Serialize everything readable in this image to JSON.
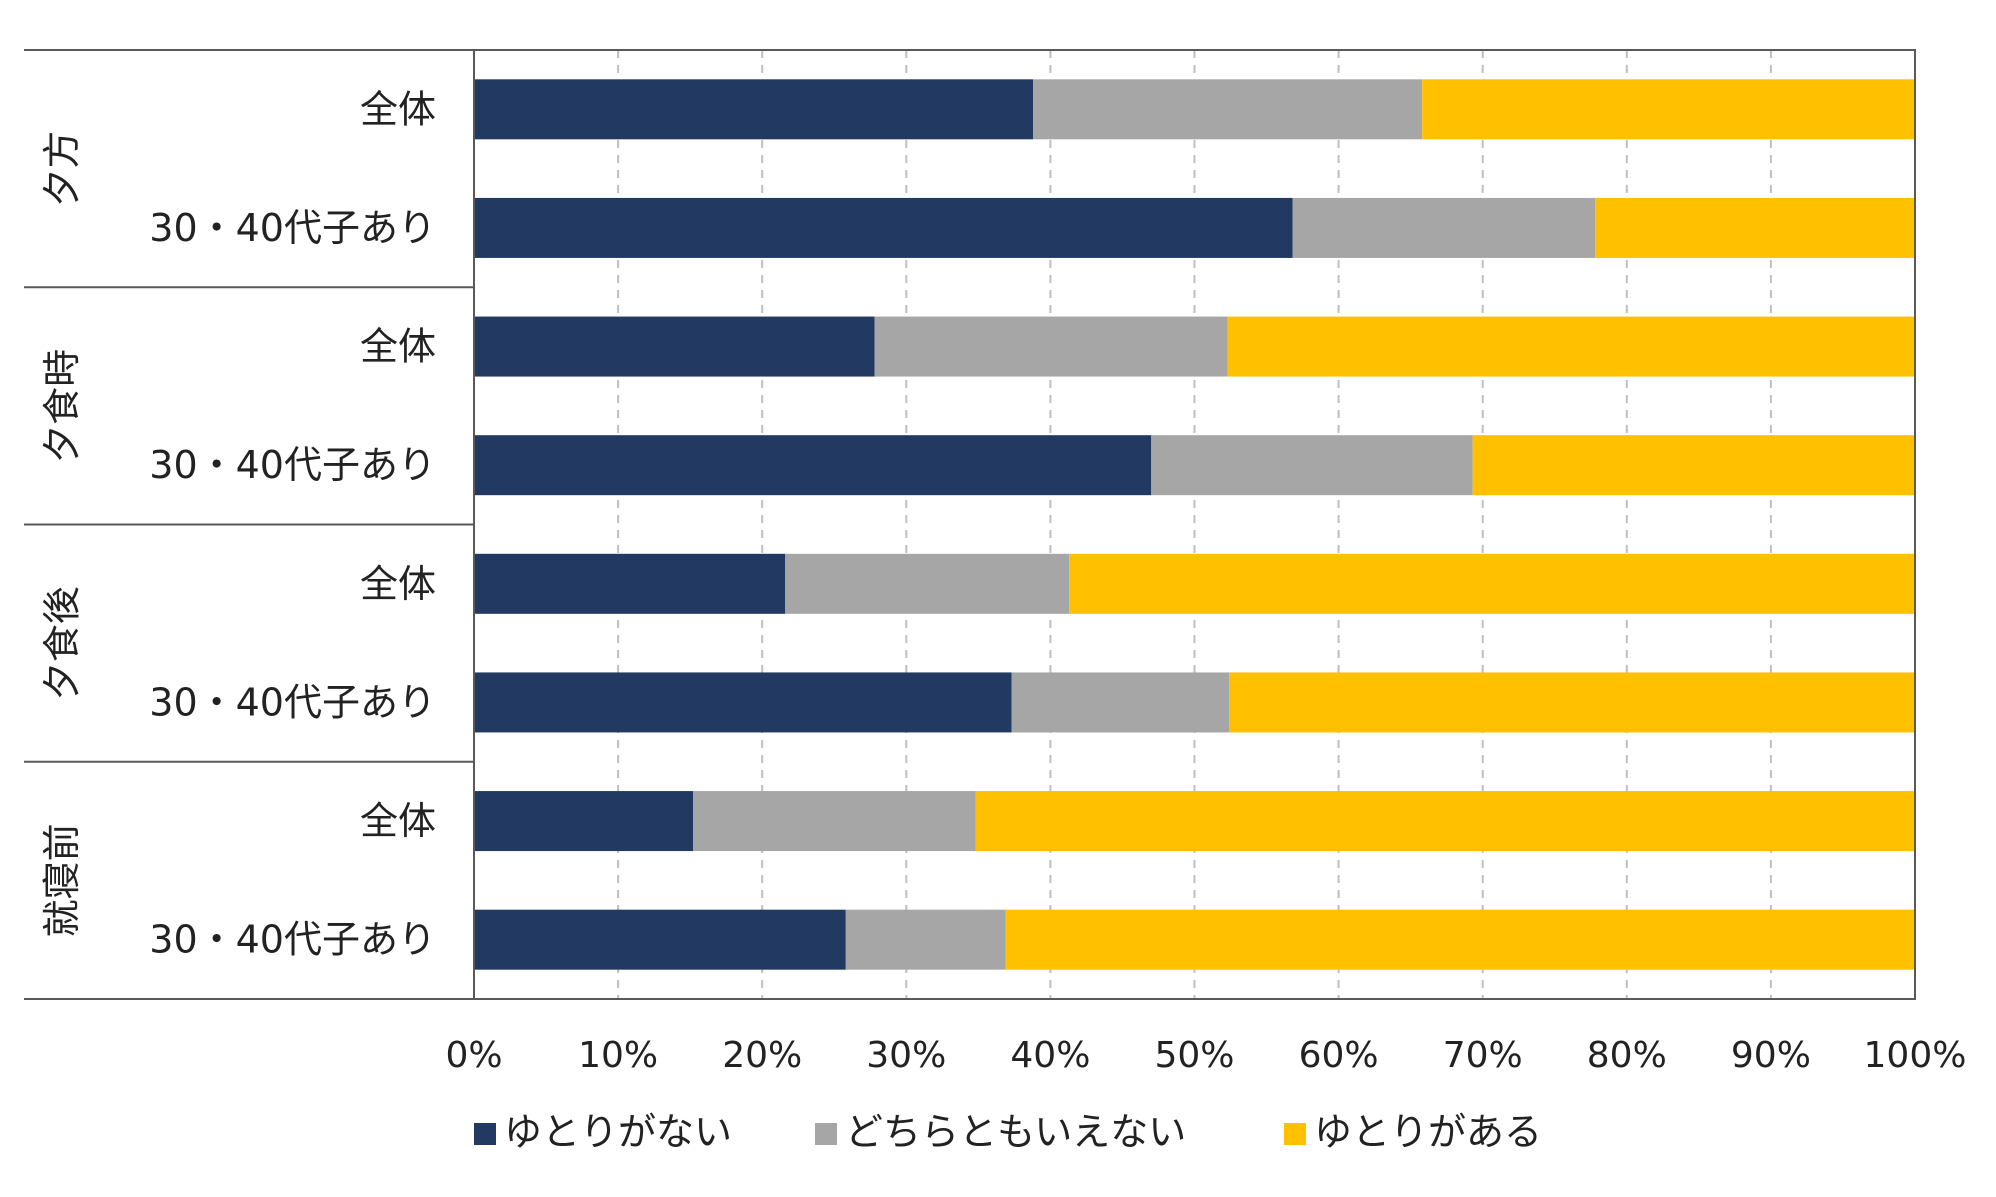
{
  "chart_data": {
    "type": "bar",
    "orientation": "horizontal",
    "stacked": "percent",
    "title": "",
    "xlabel": "",
    "ylabel": "",
    "xlim": [
      0,
      100
    ],
    "x_ticks": [
      "0%",
      "10%",
      "20%",
      "30%",
      "40%",
      "50%",
      "60%",
      "70%",
      "80%",
      "90%",
      "100%"
    ],
    "grid": "vertical dashed",
    "legend_position": "bottom",
    "groups": [
      "夕方",
      "夕食時",
      "夕食後",
      "就寝前"
    ],
    "categories": [
      {
        "group": "夕方",
        "label": "全体"
      },
      {
        "group": "夕方",
        "label": "30・40代子あり"
      },
      {
        "group": "夕食時",
        "label": "全体"
      },
      {
        "group": "夕食時",
        "label": "30・40代子あり"
      },
      {
        "group": "夕食後",
        "label": "全体"
      },
      {
        "group": "夕食後",
        "label": "30・40代子あり"
      },
      {
        "group": "就寝前",
        "label": "全体"
      },
      {
        "group": "就寝前",
        "label": "30・40代子あり"
      }
    ],
    "series": [
      {
        "name": "ゆとりがない",
        "color": "#223962",
        "values": [
          38.8,
          56.8,
          27.8,
          47.0,
          21.6,
          37.3,
          15.2,
          25.8
        ]
      },
      {
        "name": "どちらともいえない",
        "color": "#a6a6a6",
        "values": [
          27.0,
          21.0,
          24.5,
          22.3,
          19.7,
          15.1,
          19.6,
          11.1
        ]
      },
      {
        "name": "ゆとりがある",
        "color": "#ffc000",
        "values": [
          34.2,
          22.2,
          47.7,
          30.7,
          58.7,
          47.6,
          65.2,
          63.1
        ]
      }
    ]
  }
}
